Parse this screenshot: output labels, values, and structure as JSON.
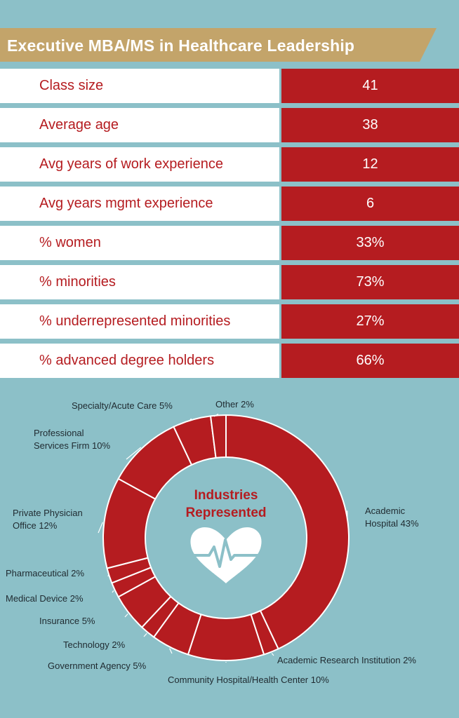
{
  "header": {
    "title": "Executive MBA/MS in Healthcare Leadership"
  },
  "colors": {
    "red": "#b51c20",
    "teal": "#8cc0c8",
    "gold": "#c3a46a",
    "white": "#ffffff",
    "text": "#1f2a30"
  },
  "stats": [
    {
      "label": "Class size",
      "value": "41"
    },
    {
      "label": "Average age",
      "value": "38"
    },
    {
      "label": "Avg years of work experience",
      "value": "12"
    },
    {
      "label": "Avg years mgmt experience",
      "value": "6"
    },
    {
      "label": "% women",
      "value": "33%"
    },
    {
      "label": "% minorities",
      "value": "73%"
    },
    {
      "label": "% underrepresented minorities",
      "value": "27%"
    },
    {
      "label": "% advanced degree holders",
      "value": "66%"
    }
  ],
  "chart_data": {
    "type": "pie",
    "title": "Industries Represented",
    "center_icon": "heart-pulse-icon",
    "unit": "%",
    "slices": [
      {
        "label": "Academic Hospital",
        "value": 43
      },
      {
        "label": "Academic Research Institution",
        "value": 2
      },
      {
        "label": "Community Hospital/Health Center",
        "value": 10
      },
      {
        "label": "Government Agency",
        "value": 5
      },
      {
        "label": "Technology",
        "value": 2
      },
      {
        "label": "Insurance",
        "value": 5
      },
      {
        "label": "Medical Device",
        "value": 2
      },
      {
        "label": "Pharmaceutical",
        "value": 2
      },
      {
        "label": "Private Physician Office",
        "value": 12
      },
      {
        "label": "Professional Services Firm",
        "value": 10
      },
      {
        "label": "Specialty/Acute Care",
        "value": 5
      },
      {
        "label": "Other",
        "value": 2
      }
    ]
  }
}
